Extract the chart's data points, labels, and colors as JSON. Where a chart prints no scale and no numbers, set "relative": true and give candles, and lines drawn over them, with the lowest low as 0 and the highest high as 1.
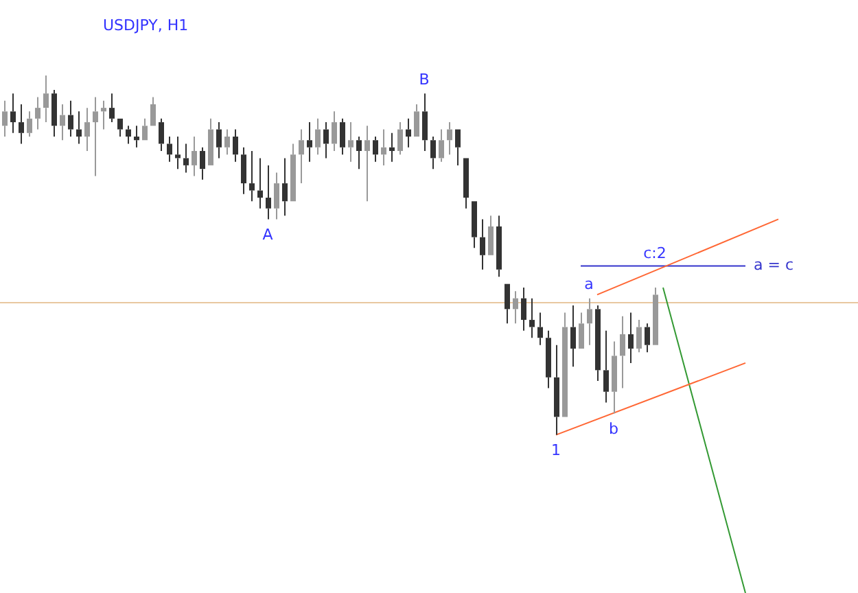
{
  "chart_data": {
    "type": "candlestick",
    "title": "USDJPY, H1",
    "relative": true,
    "tick_labels": false,
    "categories": [
      null,
      null,
      null,
      null,
      null,
      null,
      null,
      null,
      null,
      null,
      null,
      null,
      null,
      null,
      null,
      null,
      null,
      null,
      null,
      null,
      null,
      null,
      null,
      null,
      null,
      null,
      null,
      null,
      null,
      null,
      null,
      null,
      null,
      null,
      null,
      null,
      null,
      null,
      null,
      null,
      null,
      null,
      null,
      null,
      null,
      null,
      null,
      null,
      null,
      null,
      null,
      null,
      null,
      null,
      null,
      null,
      null,
      null,
      null,
      null,
      null,
      null,
      null,
      null,
      null,
      null,
      null,
      null,
      null,
      null,
      null,
      null,
      null,
      null,
      null,
      null,
      null,
      null,
      null,
      null,
      null,
      null,
      null,
      null,
      null,
      null,
      null,
      null,
      null,
      null,
      null,
      null,
      null,
      null,
      null
    ],
    "series": [
      {
        "type": "candlestick",
        "colors": [
          "#999999",
          "#333333",
          "#333333",
          "#999999",
          "#999999",
          "#999999",
          "#333333",
          "#999999",
          "#333333",
          "#333333",
          "#999999",
          "#999999",
          "#999999",
          "#333333",
          "#333333",
          "#333333",
          "#333333",
          "#999999",
          "#999999",
          "#333333",
          "#333333",
          "#333333",
          "#333333",
          "#999999",
          "#333333",
          "#999999",
          "#333333",
          "#999999",
          "#333333",
          "#333333",
          "#333333",
          "#333333",
          "#333333",
          "#999999",
          "#333333",
          "#999999",
          "#999999",
          "#333333",
          "#999999",
          "#333333",
          "#999999",
          "#333333",
          "#999999",
          "#333333",
          "#999999",
          "#333333",
          "#999999",
          "#333333",
          "#999999",
          "#333333",
          "#999999",
          "#333333",
          "#333333",
          "#999999",
          "#999999",
          "#333333",
          "#333333",
          "#333333",
          "#333333",
          "#999999",
          "#333333",
          "#333333",
          "#999999",
          "#333333",
          "#333333",
          "#333333",
          "#333333",
          "#333333",
          "#999999",
          "#333333",
          "#999999",
          "#999999",
          "#333333",
          "#333333",
          "#999999",
          "#999999",
          "#333333",
          "#999999",
          "#333333",
          "#999999",
          null,
          null,
          null,
          null,
          null,
          null,
          null,
          null,
          null,
          null,
          null,
          null,
          null,
          null,
          null
        ],
        "ohlc": [
          [
            0.86,
            0.93,
            0.83,
            0.9
          ],
          [
            0.9,
            0.95,
            0.84,
            0.87
          ],
          [
            0.87,
            0.92,
            0.81,
            0.84
          ],
          [
            0.84,
            0.9,
            0.83,
            0.88
          ],
          [
            0.88,
            0.94,
            0.85,
            0.91
          ],
          [
            0.91,
            1.0,
            0.87,
            0.95
          ],
          [
            0.95,
            0.96,
            0.83,
            0.86
          ],
          [
            0.86,
            0.92,
            0.82,
            0.89
          ],
          [
            0.89,
            0.93,
            0.83,
            0.85
          ],
          [
            0.85,
            0.9,
            0.81,
            0.83
          ],
          [
            0.83,
            0.91,
            0.79,
            0.87
          ],
          [
            0.87,
            0.94,
            0.72,
            0.9
          ],
          [
            0.9,
            0.93,
            0.85,
            0.91
          ],
          [
            0.91,
            0.95,
            0.87,
            0.88
          ],
          [
            0.88,
            0.88,
            0.83,
            0.85
          ],
          [
            0.85,
            0.86,
            0.81,
            0.83
          ],
          [
            0.83,
            0.86,
            0.8,
            0.82
          ],
          [
            0.82,
            0.88,
            0.82,
            0.86
          ],
          [
            0.86,
            0.94,
            0.86,
            0.92
          ],
          [
            0.87,
            0.88,
            0.79,
            0.81
          ],
          [
            0.81,
            0.83,
            0.76,
            0.78
          ],
          [
            0.78,
            0.83,
            0.74,
            0.77
          ],
          [
            0.77,
            0.81,
            0.73,
            0.75
          ],
          [
            0.75,
            0.83,
            0.72,
            0.79
          ],
          [
            0.79,
            0.8,
            0.71,
            0.74
          ],
          [
            0.75,
            0.88,
            0.75,
            0.85
          ],
          [
            0.85,
            0.87,
            0.77,
            0.8
          ],
          [
            0.8,
            0.85,
            0.78,
            0.83
          ],
          [
            0.83,
            0.85,
            0.76,
            0.78
          ],
          [
            0.78,
            0.8,
            0.67,
            0.7
          ],
          [
            0.7,
            0.79,
            0.65,
            0.68
          ],
          [
            0.68,
            0.77,
            0.63,
            0.66
          ],
          [
            0.66,
            0.75,
            0.6,
            0.63
          ],
          [
            0.63,
            0.73,
            0.6,
            0.7
          ],
          [
            0.7,
            0.77,
            0.61,
            0.65
          ],
          [
            0.65,
            0.81,
            0.65,
            0.78
          ],
          [
            0.78,
            0.85,
            0.7,
            0.82
          ],
          [
            0.82,
            0.87,
            0.76,
            0.8
          ],
          [
            0.8,
            0.88,
            0.78,
            0.85
          ],
          [
            0.85,
            0.87,
            0.77,
            0.81
          ],
          [
            0.81,
            0.9,
            0.79,
            0.87
          ],
          [
            0.87,
            0.88,
            0.78,
            0.8
          ],
          [
            0.8,
            0.87,
            0.76,
            0.82
          ],
          [
            0.82,
            0.83,
            0.74,
            0.79
          ],
          [
            0.79,
            0.86,
            0.65,
            0.82
          ],
          [
            0.82,
            0.83,
            0.76,
            0.78
          ],
          [
            0.78,
            0.85,
            0.75,
            0.8
          ],
          [
            0.8,
            0.84,
            0.76,
            0.79
          ],
          [
            0.79,
            0.87,
            0.78,
            0.85
          ],
          [
            0.85,
            0.88,
            0.8,
            0.83
          ],
          [
            0.83,
            0.92,
            0.83,
            0.9
          ],
          [
            0.9,
            0.95,
            0.79,
            0.82
          ],
          [
            0.82,
            0.83,
            0.74,
            0.77
          ],
          [
            0.77,
            0.85,
            0.76,
            0.82
          ],
          [
            0.82,
            0.87,
            0.78,
            0.85
          ],
          [
            0.85,
            0.85,
            0.75,
            0.8
          ],
          [
            0.77,
            0.77,
            0.63,
            0.66
          ],
          [
            0.65,
            0.65,
            0.52,
            0.55
          ],
          [
            0.55,
            0.6,
            0.46,
            0.5
          ],
          [
            0.5,
            0.61,
            0.5,
            0.58
          ],
          [
            0.58,
            0.61,
            0.44,
            0.46
          ],
          [
            0.42,
            0.42,
            0.31,
            0.35
          ],
          [
            0.35,
            0.4,
            0.31,
            0.38
          ],
          [
            0.38,
            0.41,
            0.29,
            0.32
          ],
          [
            0.32,
            0.38,
            0.27,
            0.3
          ],
          [
            0.3,
            0.34,
            0.25,
            0.27
          ],
          [
            0.27,
            0.29,
            0.13,
            0.16
          ],
          [
            0.16,
            0.25,
            0.0,
            0.05
          ],
          [
            0.05,
            0.34,
            0.05,
            0.3
          ],
          [
            0.3,
            0.36,
            0.19,
            0.24
          ],
          [
            0.24,
            0.34,
            0.24,
            0.31
          ],
          [
            0.31,
            0.38,
            0.25,
            0.35
          ],
          [
            0.35,
            0.36,
            0.15,
            0.18
          ],
          [
            0.18,
            0.29,
            0.09,
            0.12
          ],
          [
            0.12,
            0.26,
            0.06,
            0.22
          ],
          [
            0.22,
            0.33,
            0.13,
            0.28
          ],
          [
            0.28,
            0.34,
            0.2,
            0.24
          ],
          [
            0.24,
            0.32,
            0.23,
            0.3
          ],
          [
            0.3,
            0.31,
            0.23,
            0.25
          ],
          [
            0.25,
            0.41,
            0.25,
            0.39
          ],
          null,
          null,
          null,
          null,
          null,
          null,
          null,
          null,
          null,
          null,
          null,
          null,
          null,
          null,
          null
        ],
        "value_labels": [
          null,
          null,
          null,
          null,
          null,
          null,
          null,
          null,
          null,
          null,
          null,
          null,
          null,
          null,
          null,
          null,
          null,
          null,
          null,
          null,
          null,
          null,
          null,
          null,
          null,
          null,
          null,
          null,
          null,
          null,
          null,
          null,
          "A",
          null,
          null,
          null,
          null,
          null,
          null,
          null,
          null,
          null,
          null,
          null,
          null,
          null,
          null,
          null,
          null,
          null,
          null,
          "B",
          null,
          null,
          null,
          null,
          null,
          null,
          null,
          null,
          null,
          null,
          null,
          null,
          null,
          null,
          null,
          "1",
          null,
          null,
          null,
          "a",
          null,
          null,
          "b",
          null,
          null,
          null,
          null,
          "c:2",
          null,
          null,
          null,
          null,
          null,
          null,
          null,
          null,
          null,
          null,
          null,
          null,
          null,
          null,
          null
        ]
      },
      {
        "type": "line",
        "color": "#ff6633",
        "values": [
          null,
          null,
          null,
          null,
          null,
          null,
          null,
          null,
          null,
          null,
          null,
          null,
          null,
          null,
          null,
          null,
          null,
          null,
          null,
          null,
          null,
          null,
          null,
          null,
          null,
          null,
          null,
          null,
          null,
          null,
          null,
          null,
          null,
          null,
          null,
          null,
          null,
          null,
          null,
          null,
          null,
          null,
          null,
          null,
          null,
          null,
          null,
          null,
          null,
          null,
          null,
          null,
          null,
          null,
          null,
          null,
          null,
          null,
          null,
          null,
          null,
          null,
          null,
          null,
          null,
          null,
          null,
          null,
          null,
          null,
          null,
          null,
          0.39,
          null,
          null,
          null,
          null,
          null,
          null,
          null,
          null,
          null,
          null,
          null,
          null,
          null,
          null,
          null,
          null,
          null,
          null,
          null,
          null,
          null,
          0.6
        ]
      },
      {
        "type": "line",
        "color": "#ff6633",
        "values": [
          null,
          null,
          null,
          null,
          null,
          null,
          null,
          null,
          null,
          null,
          null,
          null,
          null,
          null,
          null,
          null,
          null,
          null,
          null,
          null,
          null,
          null,
          null,
          null,
          null,
          null,
          null,
          null,
          null,
          null,
          null,
          null,
          null,
          null,
          null,
          null,
          null,
          null,
          null,
          null,
          null,
          null,
          null,
          null,
          null,
          null,
          null,
          null,
          null,
          null,
          null,
          null,
          null,
          null,
          null,
          null,
          null,
          null,
          null,
          null,
          null,
          null,
          null,
          null,
          null,
          null,
          null,
          0,
          null,
          null,
          null,
          null,
          null,
          null,
          null,
          null,
          null,
          null,
          null,
          null,
          null,
          null,
          null,
          null,
          null,
          null,
          null,
          null,
          null,
          null,
          0.2,
          null,
          null,
          null,
          null
        ]
      },
      {
        "type": "line",
        "color": "#339933",
        "values": [
          null,
          null,
          null,
          null,
          null,
          null,
          null,
          null,
          null,
          null,
          null,
          null,
          null,
          null,
          null,
          null,
          null,
          null,
          null,
          null,
          null,
          null,
          null,
          null,
          null,
          null,
          null,
          null,
          null,
          null,
          null,
          null,
          null,
          null,
          null,
          null,
          null,
          null,
          null,
          null,
          null,
          null,
          null,
          null,
          null,
          null,
          null,
          null,
          null,
          null,
          null,
          null,
          null,
          null,
          null,
          null,
          null,
          null,
          null,
          null,
          null,
          null,
          null,
          null,
          null,
          null,
          null,
          null,
          null,
          null,
          null,
          null,
          null,
          null,
          null,
          null,
          null,
          null,
          null,
          null,
          0.41,
          null,
          null,
          null,
          null,
          null,
          null,
          null,
          null,
          null,
          -0.44,
          null,
          null,
          null,
          null
        ]
      },
      {
        "type": "line",
        "name": "a = c",
        "color": "#3333cc",
        "values": [
          null,
          null,
          null,
          null,
          null,
          null,
          null,
          null,
          null,
          null,
          null,
          null,
          null,
          null,
          null,
          null,
          null,
          null,
          null,
          null,
          null,
          null,
          null,
          null,
          null,
          null,
          null,
          null,
          null,
          null,
          null,
          null,
          null,
          null,
          null,
          null,
          null,
          null,
          null,
          null,
          null,
          null,
          null,
          null,
          null,
          null,
          null,
          null,
          null,
          null,
          null,
          null,
          null,
          null,
          null,
          null,
          null,
          null,
          null,
          null,
          null,
          null,
          null,
          null,
          null,
          null,
          null,
          null,
          null,
          null,
          0.47,
          null,
          null,
          null,
          null,
          null,
          null,
          null,
          null,
          null,
          0.47,
          null,
          null,
          null,
          null,
          null,
          null,
          null,
          null,
          null,
          0.47,
          null,
          null,
          null,
          null
        ]
      }
    ],
    "ref_lines": [
      {
        "axis": "y",
        "value": 0.37,
        "color": "#e8c8a0"
      }
    ]
  }
}
